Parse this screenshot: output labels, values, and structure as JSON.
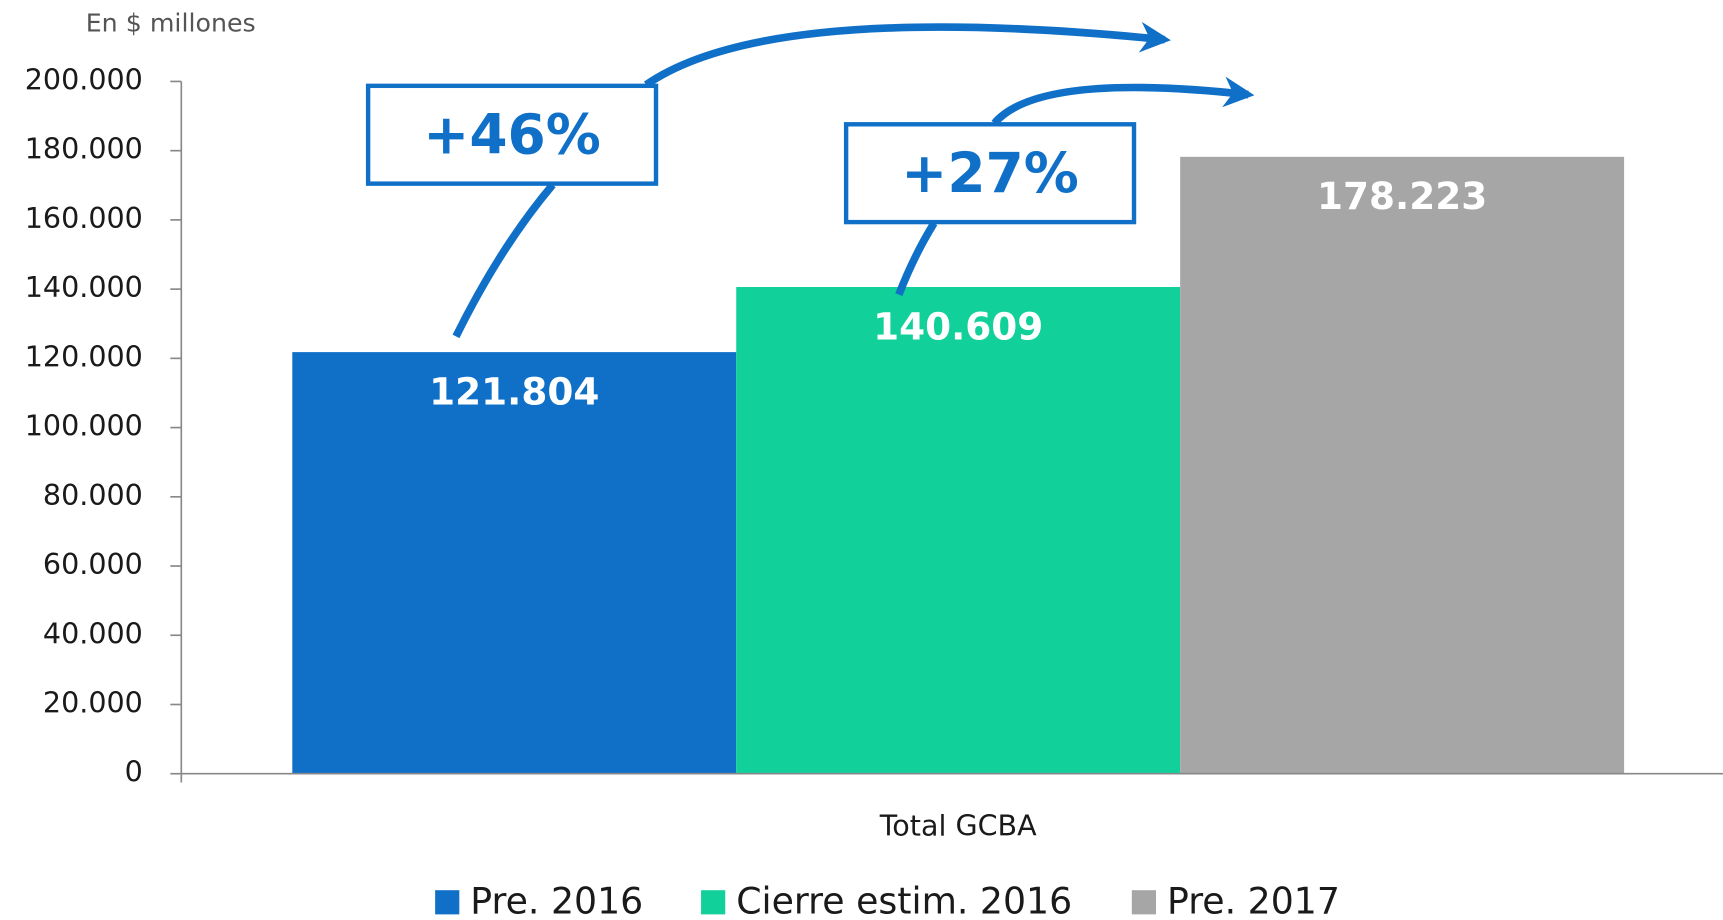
{
  "chart_data": {
    "type": "bar",
    "y_axis_label": "En $ millones",
    "categories": [
      "Total GCBA"
    ],
    "series": [
      {
        "name": "Pre. 2016",
        "color": "#1070c8",
        "values": [
          121804
        ],
        "value_labels": [
          "121.804"
        ]
      },
      {
        "name": "Cierre estim. 2016",
        "color": "#12d09a",
        "values": [
          140609
        ],
        "value_labels": [
          "140.609"
        ]
      },
      {
        "name": "Pre. 2017",
        "color": "#a6a6a6",
        "values": [
          178223
        ],
        "value_labels": [
          "178.223"
        ]
      }
    ],
    "annotations": [
      "+46%",
      "+27%"
    ],
    "ylim": [
      0,
      200000
    ],
    "yticks": [
      0,
      {
        "value": 20000,
        "label": "20.000"
      },
      {
        "value": 40000,
        "label": "40.000"
      },
      {
        "value": 60000,
        "label": "60.000"
      },
      {
        "value": 80000,
        "label": "80.000"
      },
      {
        "value": 100000,
        "label": "100.000"
      },
      {
        "value": 120000,
        "label": "120.000"
      },
      {
        "value": 140000,
        "label": "140.000"
      },
      {
        "value": 160000,
        "label": "160.000"
      },
      {
        "value": 180000,
        "label": "180.000"
      },
      {
        "value": 200000,
        "label": "200.000"
      }
    ],
    "grid": false
  }
}
